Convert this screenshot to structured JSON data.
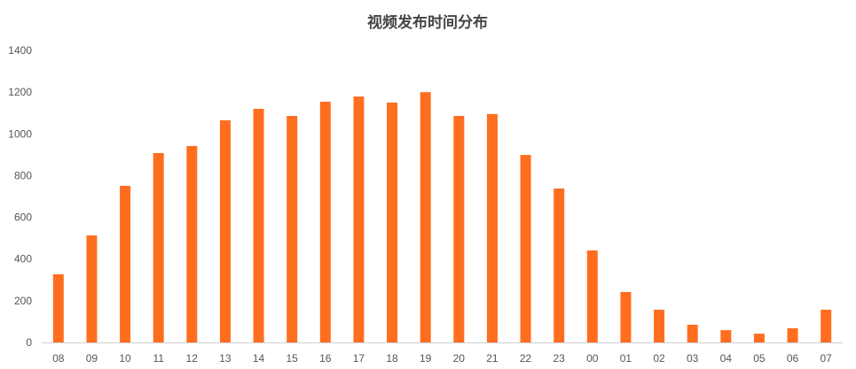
{
  "chart_data": {
    "type": "bar",
    "title": "视频发布时间分布",
    "categories": [
      "08",
      "09",
      "10",
      "11",
      "12",
      "13",
      "14",
      "15",
      "16",
      "17",
      "18",
      "19",
      "20",
      "21",
      "22",
      "23",
      "00",
      "01",
      "02",
      "03",
      "04",
      "05",
      "06",
      "07"
    ],
    "values": [
      327,
      513,
      751,
      908,
      942,
      1065,
      1120,
      1086,
      1154,
      1179,
      1150,
      1200,
      1086,
      1095,
      899,
      738,
      441,
      242,
      157,
      85,
      59,
      42,
      68,
      157
    ],
    "ylim": [
      0,
      1400
    ],
    "yticks": [
      0,
      200,
      400,
      600,
      800,
      1000,
      1200,
      1400
    ],
    "grid": false,
    "legend": "none",
    "color": "#ff6e1f"
  }
}
